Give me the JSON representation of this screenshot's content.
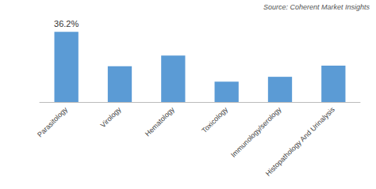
{
  "chart_data": {
    "type": "bar",
    "categories": [
      "Parasitology",
      "Virology",
      "Hematology",
      "Toxicology",
      "Immunology/serology",
      "Histopathology And Urinalysis"
    ],
    "values": [
      36.2,
      18.5,
      24.0,
      10.5,
      13.0,
      18.8
    ],
    "color": "#5B9BD5",
    "ylim": [
      0,
      42
    ],
    "grid": false,
    "tick_labels": "x",
    "annotations": [
      {
        "text": "36.2%",
        "x": "Parasitology",
        "y": 36.2
      },
      {
        "text": "Source: Coherent Market Insights"
      }
    ]
  }
}
